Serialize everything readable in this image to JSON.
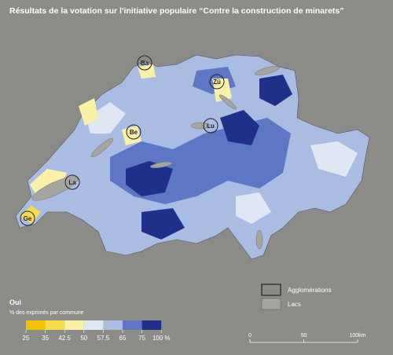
{
  "title": "Résultats de la votation sur l'initiative populaire “Contre la construction de minarets”",
  "legend": {
    "title": "Oui",
    "subtitle": "% des exprimés par commune",
    "ticks": [
      25,
      35,
      42.5,
      50,
      57.5,
      65,
      75,
      {
        "value": 100,
        "label": "100 %"
      }
    ],
    "colors": [
      "#f2c200",
      "#f6dc4c",
      "#fbf1a6",
      "#dfe7f3",
      "#a9bde2",
      "#5f76c4",
      "#1f2f8a"
    ]
  },
  "key": {
    "agglomerations": "Agglomérations",
    "lakes": "Lacs"
  },
  "scale_bar": {
    "ticks": [
      0,
      50,
      {
        "value": 100,
        "label": "100km"
      }
    ]
  },
  "cities": [
    "Ba",
    "Zü",
    "Be",
    "La",
    "Ge",
    "Lu"
  ]
}
